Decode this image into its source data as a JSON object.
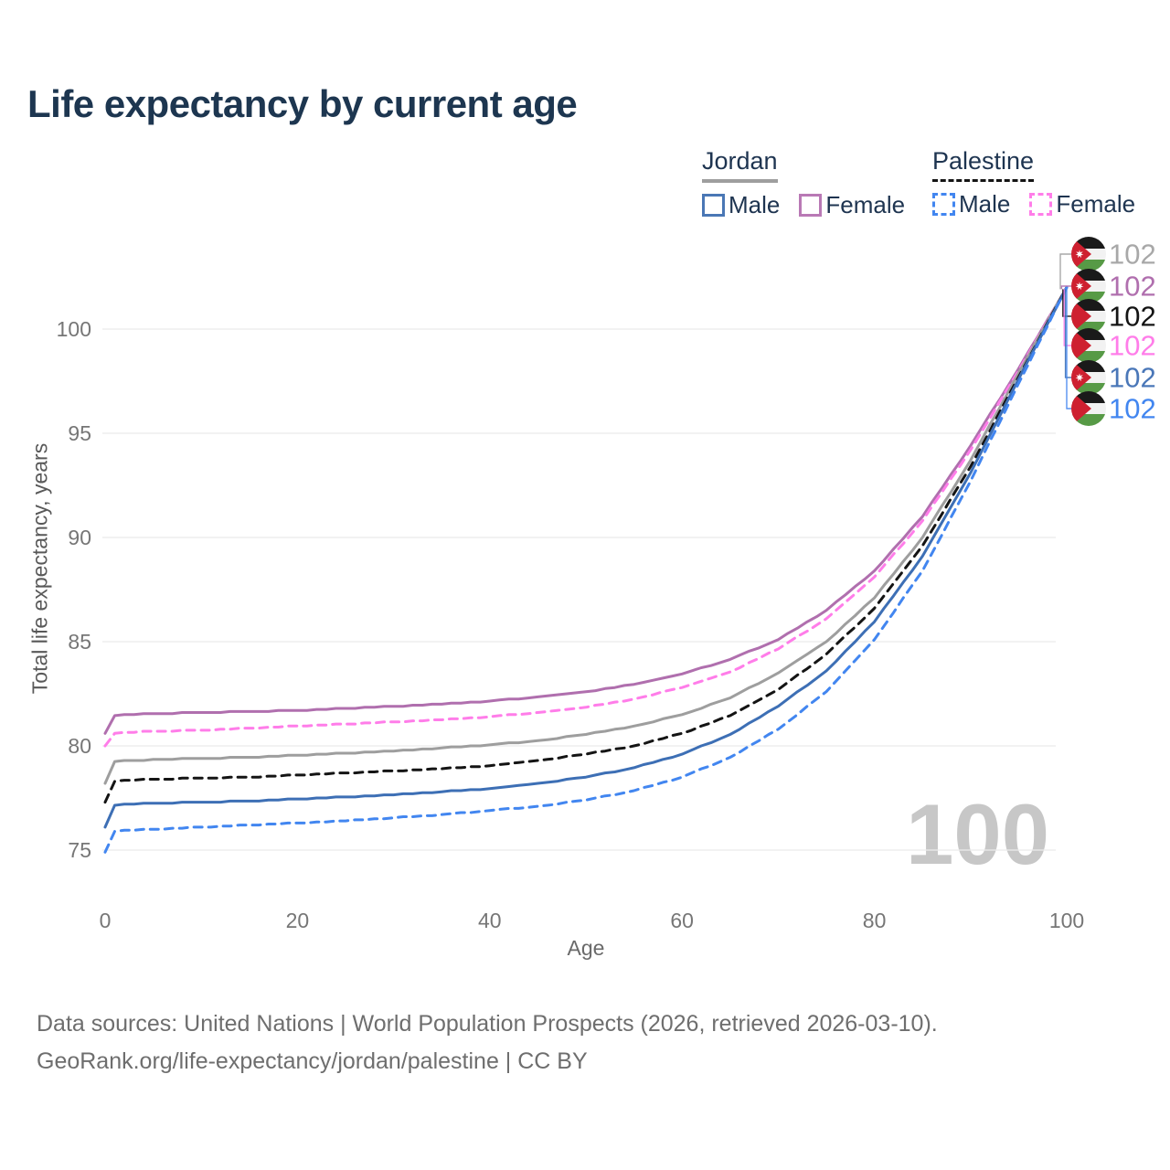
{
  "title": "Life expectancy by current age",
  "watermark_age": "100",
  "footer": {
    "line1": "Data sources: United Nations | World Population Prospects (2026, retrieved 2026-03-10).",
    "line2": "GeoRank.org/life-expectancy/jordan/palestine | CC BY"
  },
  "legend": {
    "groups": [
      {
        "id": "jordan",
        "label": "Jordan",
        "underline_style": "solid",
        "underline_color": "#9e9e9e",
        "items": [
          {
            "id": "jordan-male",
            "label": "Male",
            "color": "#4a77b5",
            "dashed": false
          },
          {
            "id": "jordan-female",
            "label": "Female",
            "color": "#b979b5",
            "dashed": false
          }
        ]
      },
      {
        "id": "palestine",
        "label": "Palestine",
        "underline_style": "dashed",
        "underline_color": "#141414",
        "items": [
          {
            "id": "palestine-male",
            "label": "Male",
            "color": "#4286f0",
            "dashed": true
          },
          {
            "id": "palestine-female",
            "label": "Female",
            "color": "#ff7de9",
            "dashed": true
          }
        ]
      }
    ]
  },
  "chart_data": {
    "type": "line",
    "title": "Life expectancy by current age",
    "xlabel": "Age",
    "ylabel": "Total life expectancy, years",
    "x_ticks": [
      0,
      20,
      40,
      60,
      80,
      100
    ],
    "y_ticks": [
      75,
      80,
      85,
      90,
      95,
      100
    ],
    "xlim": [
      0,
      100
    ],
    "ylim": [
      74.5,
      103
    ],
    "grid": "horizontal-only",
    "legend_position": "top-right",
    "ages": [
      0,
      1,
      5,
      10,
      15,
      20,
      25,
      30,
      35,
      40,
      45,
      50,
      55,
      60,
      65,
      70,
      75,
      80,
      85,
      90,
      95,
      100
    ],
    "series": [
      {
        "id": "jordan-both",
        "country": "Jordan",
        "sex": "Both",
        "flag": "jordan",
        "color": "#9e9e9e",
        "label_color": "#a8a8a8",
        "dashed": false,
        "end_label": "102",
        "values": [
          78.2,
          79.25,
          79.35,
          79.4,
          79.45,
          79.55,
          79.65,
          79.75,
          79.9,
          80.05,
          80.25,
          80.55,
          80.95,
          81.5,
          82.3,
          83.5,
          85.0,
          87.1,
          90.0,
          93.7,
          97.9,
          102
        ]
      },
      {
        "id": "jordan-female",
        "country": "Jordan",
        "sex": "Female",
        "flag": "jordan",
        "color": "#b06fae",
        "label_color": "#b06fae",
        "dashed": false,
        "end_label": "102",
        "values": [
          80.6,
          81.45,
          81.55,
          81.6,
          81.65,
          81.7,
          81.8,
          81.9,
          82.0,
          82.15,
          82.35,
          82.6,
          82.95,
          83.45,
          84.15,
          85.1,
          86.5,
          88.4,
          91.0,
          94.4,
          98.1,
          102
        ]
      },
      {
        "id": "palestine-both",
        "country": "Palestine",
        "sex": "Both",
        "flag": "palestine",
        "color": "#141414",
        "label_color": "#141414",
        "dashed": true,
        "end_label": "102",
        "values": [
          77.3,
          78.3,
          78.4,
          78.45,
          78.5,
          78.6,
          78.7,
          78.8,
          78.9,
          79.05,
          79.3,
          79.6,
          80.0,
          80.6,
          81.45,
          82.7,
          84.4,
          86.6,
          89.6,
          93.4,
          97.7,
          102
        ]
      },
      {
        "id": "palestine-female",
        "country": "Palestine",
        "sex": "Female",
        "flag": "palestine",
        "color": "#ff7de9",
        "label_color": "#ff7de9",
        "dashed": true,
        "end_label": "102",
        "values": [
          80.0,
          80.6,
          80.7,
          80.75,
          80.85,
          80.95,
          81.05,
          81.15,
          81.25,
          81.4,
          81.6,
          81.85,
          82.25,
          82.8,
          83.55,
          84.65,
          86.1,
          88.1,
          90.8,
          94.2,
          98.0,
          102
        ]
      },
      {
        "id": "jordan-male",
        "country": "Jordan",
        "sex": "Male",
        "flag": "jordan",
        "color": "#3d6fb5",
        "label_color": "#4a77b8",
        "dashed": false,
        "end_label": "102",
        "values": [
          76.1,
          77.15,
          77.25,
          77.3,
          77.35,
          77.45,
          77.55,
          77.65,
          77.8,
          77.95,
          78.2,
          78.5,
          78.95,
          79.6,
          80.55,
          81.9,
          83.6,
          85.95,
          89.1,
          93.1,
          97.6,
          102
        ]
      },
      {
        "id": "palestine-male",
        "country": "Palestine",
        "sex": "Male",
        "flag": "palestine",
        "color": "#4286f0",
        "label_color": "#4286f0",
        "dashed": true,
        "end_label": "102",
        "values": [
          74.9,
          75.9,
          76.0,
          76.1,
          76.2,
          76.3,
          76.4,
          76.55,
          76.7,
          76.9,
          77.1,
          77.4,
          77.85,
          78.5,
          79.45,
          80.8,
          82.6,
          85.1,
          88.4,
          92.7,
          97.4,
          102
        ]
      }
    ]
  },
  "colors": {
    "title_text": "#1d3650",
    "legend_text": "#1e3450",
    "tick_text": "#767676",
    "gridline": "#ebebeb",
    "watermark": "#c7c7c7",
    "footer_text": "#6e6e6e",
    "flag_red": "#ce2030",
    "flag_green": "#579a46",
    "flag_black": "#1a1a1a"
  }
}
